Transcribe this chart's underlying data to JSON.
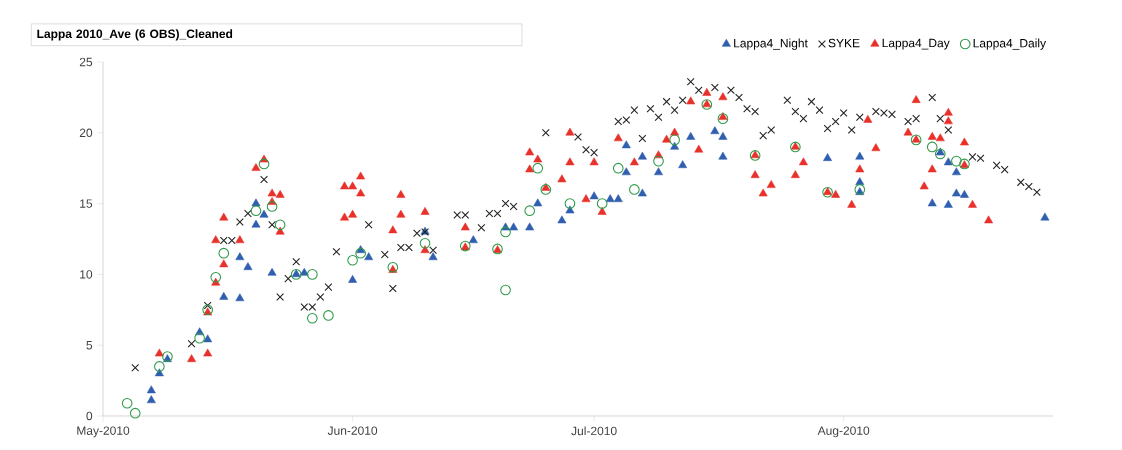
{
  "chart_data": {
    "type": "scatter",
    "title": "Lappa 2010_Ave (6 OBS)_Cleaned",
    "xlim": [
      "2010-05-01",
      "2010-08-27"
    ],
    "xticks": [
      {
        "value": "2010-05-01",
        "label": "May-2010"
      },
      {
        "value": "2010-06-01",
        "label": "Jun-2010"
      },
      {
        "value": "2010-07-01",
        "label": "Jul-2010"
      },
      {
        "value": "2010-08-01",
        "label": "Aug-2010"
      }
    ],
    "ylim": [
      0,
      25
    ],
    "yticks": [
      0,
      5,
      10,
      15,
      20,
      25
    ],
    "grid": false,
    "legend": "top right",
    "series": [
      {
        "name": "Lappa4_Night",
        "color": "#2f5fae",
        "marker": "triangle",
        "x": [
          "2010-05-07",
          "2010-05-07",
          "2010-05-08",
          "2010-05-09",
          "2010-05-13",
          "2010-05-14",
          "2010-05-16",
          "2010-05-18",
          "2010-05-18",
          "2010-05-19",
          "2010-05-20",
          "2010-05-21",
          "2010-05-20",
          "2010-05-22",
          "2010-05-25",
          "2010-05-26",
          "2010-06-01",
          "2010-06-02",
          "2010-06-03",
          "2010-06-10",
          "2010-06-11",
          "2010-06-16",
          "2010-06-20",
          "2010-06-21",
          "2010-06-23",
          "2010-06-24",
          "2010-06-27",
          "2010-06-28",
          "2010-07-01",
          "2010-07-03",
          "2010-07-04",
          "2010-07-05",
          "2010-07-05",
          "2010-07-07",
          "2010-07-07",
          "2010-07-09",
          "2010-07-11",
          "2010-07-12",
          "2010-07-13",
          "2010-07-16",
          "2010-07-17",
          "2010-07-17",
          "2010-07-30",
          "2010-08-03",
          "2010-08-03",
          "2010-08-03",
          "2010-08-12",
          "2010-08-13",
          "2010-08-14",
          "2010-08-15",
          "2010-08-15",
          "2010-08-16",
          "2010-08-14",
          "2010-08-26"
        ],
        "values": [
          1.1,
          1.8,
          3.0,
          4.0,
          5.9,
          5.4,
          8.4,
          8.3,
          11.2,
          10.5,
          15.0,
          14.2,
          13.5,
          10.1,
          10.0,
          10.1,
          9.6,
          11.7,
          11.2,
          13.0,
          11.2,
          12.4,
          13.3,
          13.3,
          13.3,
          15.0,
          13.8,
          14.5,
          15.5,
          15.3,
          15.3,
          17.2,
          19.1,
          18.3,
          15.7,
          17.2,
          19.0,
          17.7,
          19.7,
          20.1,
          19.7,
          18.3,
          18.2,
          18.3,
          16.5,
          15.8,
          15.0,
          18.6,
          17.9,
          17.2,
          15.7,
          15.6,
          14.9,
          14.0
        ]
      },
      {
        "name": "SYKE",
        "color": "#222222",
        "marker": "cross",
        "x": [
          "2010-05-05",
          "2010-05-12",
          "2010-05-14",
          "2010-05-16",
          "2010-05-17",
          "2010-05-18",
          "2010-05-19",
          "2010-05-21",
          "2010-05-22",
          "2010-05-23",
          "2010-05-24",
          "2010-05-25",
          "2010-05-26",
          "2010-05-27",
          "2010-05-28",
          "2010-05-29",
          "2010-05-30",
          "2010-06-03",
          "2010-06-05",
          "2010-06-06",
          "2010-06-07",
          "2010-06-08",
          "2010-06-09",
          "2010-06-10",
          "2010-06-11",
          "2010-06-14",
          "2010-06-15",
          "2010-06-17",
          "2010-06-18",
          "2010-06-19",
          "2010-06-20",
          "2010-06-21",
          "2010-06-25",
          "2010-06-29",
          "2010-06-30",
          "2010-07-01",
          "2010-07-04",
          "2010-07-05",
          "2010-07-06",
          "2010-07-07",
          "2010-07-08",
          "2010-07-09",
          "2010-07-10",
          "2010-07-11",
          "2010-07-12",
          "2010-07-13",
          "2010-07-14",
          "2010-07-16",
          "2010-07-18",
          "2010-07-19",
          "2010-07-20",
          "2010-07-21",
          "2010-07-22",
          "2010-07-23",
          "2010-07-25",
          "2010-07-26",
          "2010-07-27",
          "2010-07-28",
          "2010-07-29",
          "2010-07-30",
          "2010-07-31",
          "2010-08-01",
          "2010-08-02",
          "2010-08-03",
          "2010-08-05",
          "2010-08-06",
          "2010-08-07",
          "2010-08-09",
          "2010-08-10",
          "2010-08-12",
          "2010-08-13",
          "2010-08-14",
          "2010-08-17",
          "2010-08-18",
          "2010-08-20",
          "2010-08-21",
          "2010-08-23",
          "2010-08-24",
          "2010-08-25"
        ],
        "values": [
          3.4,
          5.1,
          7.8,
          12.4,
          12.4,
          13.7,
          14.3,
          16.7,
          13.5,
          8.4,
          9.7,
          10.9,
          7.7,
          7.7,
          8.4,
          9.1,
          11.6,
          13.5,
          11.4,
          9.0,
          11.9,
          11.9,
          12.9,
          13.0,
          11.7,
          14.2,
          14.2,
          13.3,
          14.3,
          14.3,
          15.0,
          14.8,
          20.0,
          19.7,
          18.8,
          18.6,
          20.8,
          20.9,
          21.6,
          19.6,
          21.7,
          21.1,
          22.2,
          21.6,
          22.3,
          23.6,
          23.0,
          23.2,
          23.0,
          22.5,
          21.7,
          21.5,
          19.8,
          20.2,
          22.3,
          21.5,
          21.0,
          22.2,
          21.6,
          20.3,
          20.8,
          21.4,
          20.2,
          21.1,
          21.5,
          21.4,
          21.3,
          20.8,
          21.0,
          22.5,
          21.0,
          20.2,
          18.3,
          18.2,
          17.7,
          17.4,
          16.5,
          16.2,
          15.8
        ]
      },
      {
        "name": "Lappa4_Day",
        "color": "#e8312a",
        "marker": "triangle",
        "x": [
          "2010-05-08",
          "2010-05-12",
          "2010-05-14",
          "2010-05-14",
          "2010-05-15",
          "2010-05-16",
          "2010-05-15",
          "2010-05-16",
          "2010-05-18",
          "2010-05-20",
          "2010-05-21",
          "2010-05-22",
          "2010-05-23",
          "2010-05-22",
          "2010-05-23",
          "2010-05-31",
          "2010-05-31",
          "2010-06-02",
          "2010-06-02",
          "2010-06-01",
          "2010-06-01",
          "2010-06-07",
          "2010-06-07",
          "2010-06-06",
          "2010-06-06",
          "2010-06-10",
          "2010-06-10",
          "2010-06-15",
          "2010-06-15",
          "2010-06-19",
          "2010-06-23",
          "2010-06-23",
          "2010-06-24",
          "2010-06-25",
          "2010-06-28",
          "2010-06-28",
          "2010-06-27",
          "2010-06-30",
          "2010-07-01",
          "2010-07-02",
          "2010-07-04",
          "2010-07-06",
          "2010-07-09",
          "2010-07-10",
          "2010-07-11",
          "2010-07-13",
          "2010-07-15",
          "2010-07-15",
          "2010-07-17",
          "2010-07-17",
          "2010-07-14",
          "2010-07-21",
          "2010-07-21",
          "2010-07-22",
          "2010-07-23",
          "2010-07-26",
          "2010-07-27",
          "2010-07-26",
          "2010-07-30",
          "2010-07-31",
          "2010-08-04",
          "2010-08-05",
          "2010-08-03",
          "2010-08-02",
          "2010-08-10",
          "2010-08-09",
          "2010-08-10",
          "2010-08-14",
          "2010-08-14",
          "2010-08-12",
          "2010-08-13",
          "2010-08-12",
          "2010-08-11",
          "2010-08-16",
          "2010-08-16",
          "2010-08-17",
          "2010-08-19"
        ],
        "values": [
          4.4,
          4.0,
          4.4,
          7.3,
          9.4,
          10.7,
          12.4,
          14.0,
          12.4,
          17.5,
          18.1,
          15.7,
          15.6,
          15.1,
          13.0,
          16.2,
          14.0,
          16.9,
          15.7,
          16.2,
          14.2,
          15.6,
          14.2,
          13.1,
          10.3,
          14.4,
          11.7,
          13.3,
          11.9,
          11.7,
          18.6,
          17.4,
          18.1,
          16.1,
          20.0,
          17.9,
          16.7,
          15.3,
          17.9,
          14.4,
          19.6,
          17.9,
          18.4,
          19.5,
          20.0,
          22.2,
          22.8,
          22.0,
          22.5,
          21.1,
          18.8,
          18.4,
          17.0,
          15.7,
          16.3,
          19.0,
          17.9,
          17.0,
          15.8,
          15.6,
          20.9,
          18.9,
          17.4,
          14.9,
          22.3,
          20.0,
          19.5,
          21.4,
          20.8,
          19.7,
          19.6,
          17.4,
          16.2,
          19.3,
          17.7,
          14.9,
          13.8
        ]
      },
      {
        "name": "Lappa4_Daily",
        "color": "#2e9a4a",
        "marker": "circle",
        "x": [
          "2010-05-04",
          "2010-05-05",
          "2010-05-08",
          "2010-05-09",
          "2010-05-13",
          "2010-05-14",
          "2010-05-15",
          "2010-05-16",
          "2010-05-20",
          "2010-05-21",
          "2010-05-22",
          "2010-05-23",
          "2010-05-25",
          "2010-05-27",
          "2010-05-27",
          "2010-05-29",
          "2010-06-01",
          "2010-06-02",
          "2010-06-06",
          "2010-06-10",
          "2010-06-15",
          "2010-06-19",
          "2010-06-20",
          "2010-06-20",
          "2010-06-23",
          "2010-06-24",
          "2010-06-25",
          "2010-06-28",
          "2010-07-02",
          "2010-07-04",
          "2010-07-06",
          "2010-07-09",
          "2010-07-11",
          "2010-07-15",
          "2010-07-17",
          "2010-07-21",
          "2010-07-26",
          "2010-07-30",
          "2010-08-03",
          "2010-08-10",
          "2010-08-12",
          "2010-08-13",
          "2010-08-15",
          "2010-08-16"
        ],
        "values": [
          0.9,
          0.2,
          3.5,
          4.2,
          5.5,
          7.5,
          9.8,
          11.5,
          14.5,
          17.8,
          14.8,
          13.5,
          10.0,
          10.0,
          6.9,
          7.1,
          11.0,
          11.5,
          10.5,
          12.2,
          12.0,
          11.8,
          13.0,
          8.9,
          14.5,
          17.5,
          16.0,
          15.0,
          15.0,
          17.5,
          16.0,
          18.0,
          19.5,
          22.0,
          21.0,
          18.4,
          19.0,
          15.8,
          16.0,
          19.5,
          19.0,
          18.5,
          18.0,
          17.8
        ]
      }
    ]
  }
}
